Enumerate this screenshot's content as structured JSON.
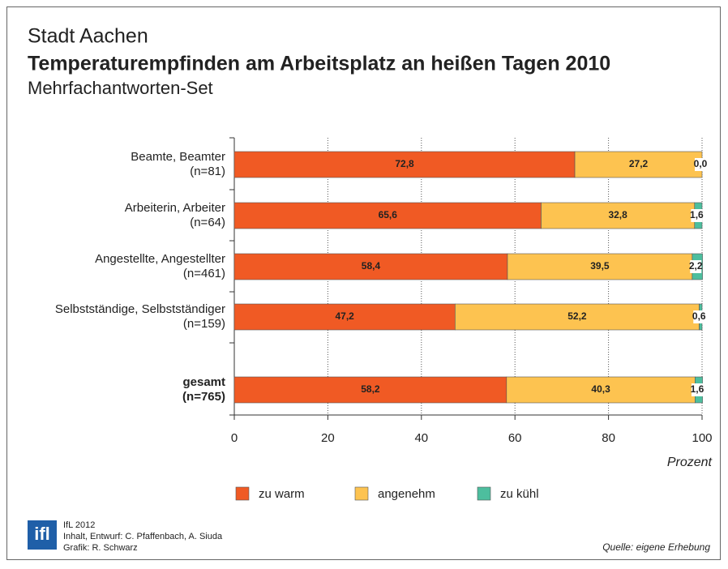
{
  "chart_data": {
    "type": "stacked_barh",
    "title": "Stadt Aachen",
    "subtitle": "Temperaturempfinden am Arbeitsplatz an heißen Tagen 2010",
    "subtitle2": "Mehrfachantworten-Set",
    "categories": [
      [
        "Beamte, Beamter",
        "(n=81)"
      ],
      [
        "Arbeiterin, Arbeiter",
        "(n=64)"
      ],
      [
        "Angestellte, Angestellter",
        "(n=461)"
      ],
      [
        "Selbstständige, Selbstständiger",
        "(n=159)"
      ],
      [
        "gesamt",
        "(n=765)"
      ]
    ],
    "series": [
      {
        "name": "zu warm",
        "color": "#f05a24",
        "values": [
          72.8,
          65.6,
          58.4,
          47.2,
          58.2
        ],
        "value_labels": [
          "72,8",
          "65,6",
          "58,4",
          "47,2",
          "58,2"
        ]
      },
      {
        "name": "angenehm",
        "color": "#fdc350",
        "values": [
          27.2,
          32.8,
          39.5,
          52.2,
          40.3
        ],
        "value_labels": [
          "27,2",
          "32,8",
          "39,5",
          "52,2",
          "40,3"
        ]
      },
      {
        "name": "zu kühl",
        "color": "#4dbe9e",
        "values": [
          0.0,
          1.6,
          2.2,
          0.6,
          1.6
        ],
        "value_labels": [
          "0,0",
          "1,6",
          "2,2",
          "0,6",
          "1,6"
        ]
      }
    ],
    "xlim": [
      0,
      100
    ],
    "xticks": [
      0,
      20,
      40,
      60,
      80,
      100
    ],
    "xlabel": "Prozent",
    "grid": true,
    "footer": {
      "logo": "ifl",
      "lines": [
        "IfL 2012",
        "Inhalt, Entwurf: C. Pfaffenbach, A. Siuda",
        "Grafik: R. Schwarz"
      ],
      "source": "Quelle: eigene Erhebung"
    }
  }
}
